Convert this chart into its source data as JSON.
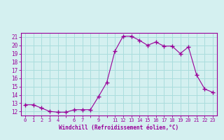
{
  "x": [
    0,
    1,
    2,
    3,
    4,
    5,
    6,
    7,
    8,
    9,
    10,
    11,
    12,
    13,
    14,
    15,
    16,
    17,
    18,
    19,
    20,
    21,
    22,
    23
  ],
  "y": [
    12.8,
    12.8,
    12.4,
    12.0,
    11.9,
    11.9,
    12.2,
    12.2,
    12.2,
    13.8,
    15.5,
    19.3,
    21.1,
    21.1,
    20.6,
    20.0,
    20.4,
    19.9,
    19.9,
    19.0,
    19.8,
    16.4,
    14.7,
    14.3
  ],
  "xlim": [
    -0.5,
    23.5
  ],
  "ylim": [
    11.5,
    21.5
  ],
  "yticks": [
    12,
    13,
    14,
    15,
    16,
    17,
    18,
    19,
    20,
    21
  ],
  "xlabel": "Windchill (Refroidissement éolien,°C)",
  "line_color": "#990099",
  "marker_color": "#990099",
  "bg_color": "#d4f0f0",
  "grid_color": "#aadddd",
  "tick_color": "#990099",
  "xtick_skip": [
    5,
    8,
    10
  ]
}
